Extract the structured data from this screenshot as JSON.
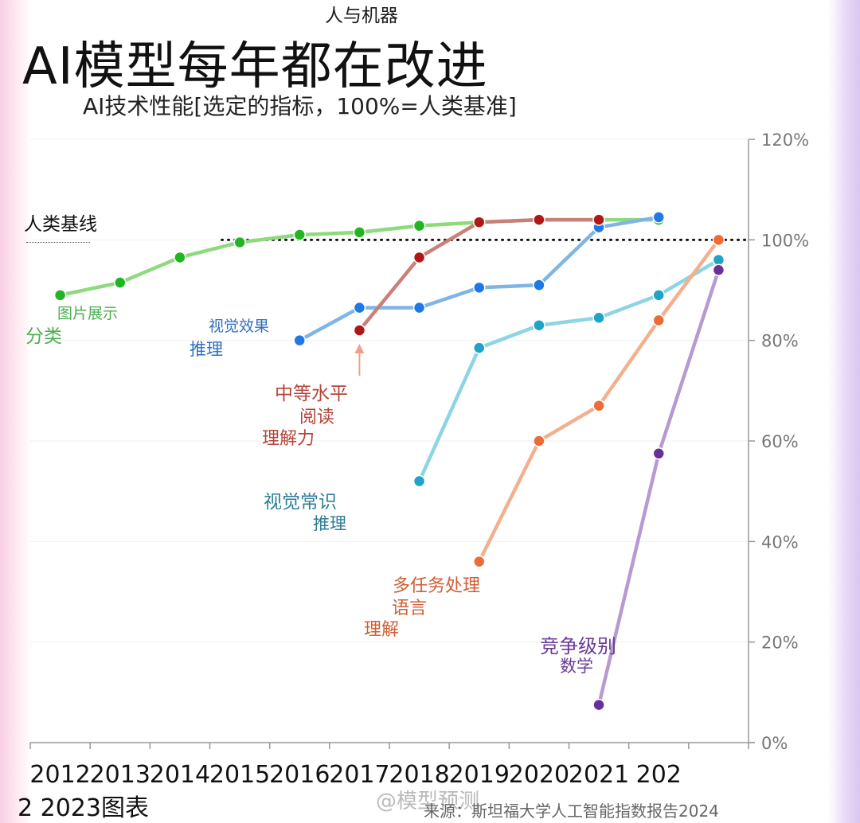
{
  "header": {
    "top_label": "人与机器",
    "title": "AI模型每年都在改进",
    "subtitle": "AI技术性能[选定的指标，100%=人类基准]"
  },
  "footer": {
    "left_text": "2 2023图表",
    "watermark": "@模型预测",
    "source": "来源：斯坦福大学人工智能指数报告2024"
  },
  "chart_data": {
    "type": "line",
    "title": "AI模型每年都在改进",
    "subtitle": "AI技术性能[选定的指标，100%=人类基准]",
    "x_tick_labels": [
      "2012",
      "2013",
      "2014",
      "2015",
      "2016",
      "2017",
      "2018",
      "2019",
      "2020",
      "2021",
      "202"
    ],
    "x_range": [
      2011.0,
      2023.0
    ],
    "y_ticks": [
      0,
      20,
      40,
      60,
      80,
      100,
      120
    ],
    "y_tick_labels": [
      "0%",
      "20%",
      "40%",
      "60%",
      "80%",
      "100%",
      "120%"
    ],
    "ylim": [
      0,
      120
    ],
    "y_axis_side": "right",
    "grid": true,
    "baseline": {
      "value": 100,
      "label": "人类基线",
      "style": "dotted",
      "color": "#111111"
    },
    "series": [
      {
        "name": "图片展示 分类",
        "label_lines": [
          "图片展示",
          "分类"
        ],
        "color": "#8fd97e",
        "marker_color": "#22b522",
        "label_color": "#4caf50",
        "x": [
          2011.5,
          2012.5,
          2013.5,
          2014.5,
          2015.5,
          2016.5,
          2017.5,
          2018.5,
          2019.5,
          2020.5,
          2021.5
        ],
        "y": [
          89,
          91.5,
          96.5,
          99.5,
          101,
          101.5,
          102.8,
          103.5,
          104,
          104,
          104
        ]
      },
      {
        "name": "视觉效果 推理",
        "label_lines": [
          "视觉效果",
          "推理"
        ],
        "color": "#7fb5e6",
        "marker_color": "#1f78e6",
        "label_color": "#2f6fbd",
        "x": [
          2015.5,
          2016.5,
          2017.5,
          2018.5,
          2019.5,
          2020.5,
          2021.5
        ],
        "y": [
          80,
          86.5,
          86.5,
          90.5,
          91,
          102.5,
          104.5
        ]
      },
      {
        "name": "中等水平 阅读 理解力",
        "label_lines": [
          "中等水平",
          "阅读",
          "理解力"
        ],
        "color": "#c98078",
        "marker_color": "#b01818",
        "label_color": "#b5443c",
        "x": [
          2016.5,
          2017.5,
          2018.5,
          2019.5,
          2020.5
        ],
        "y": [
          82,
          96.5,
          103.5,
          104,
          104
        ]
      },
      {
        "name": "视觉常识 推理",
        "label_lines": [
          "视觉常识",
          "推理"
        ],
        "color": "#8dd4e4",
        "marker_color": "#1fa3c7",
        "label_color": "#2e7e96",
        "x": [
          2017.5,
          2018.5,
          2019.5,
          2020.5,
          2021.5,
          2022.5
        ],
        "y": [
          52,
          78.5,
          83,
          84.5,
          89,
          96
        ]
      },
      {
        "name": "多任务处理 语言 理解",
        "label_lines": [
          "多任务处理",
          "语言",
          "理解"
        ],
        "color": "#f2b08f",
        "marker_color": "#ec6b36",
        "label_color": "#cf5f35",
        "x": [
          2018.5,
          2019.5,
          2020.5,
          2021.5,
          2022.5
        ],
        "y": [
          36,
          60,
          67,
          84,
          100
        ]
      },
      {
        "name": "竞争级别 数学",
        "label_lines": [
          "竞争级别",
          "数学"
        ],
        "color": "#b79ad2",
        "marker_color": "#6a2f9b",
        "label_color": "#6a3b96",
        "x": [
          2020.5,
          2021.5,
          2022.5
        ],
        "y": [
          7.5,
          57.5,
          94
        ]
      }
    ]
  }
}
